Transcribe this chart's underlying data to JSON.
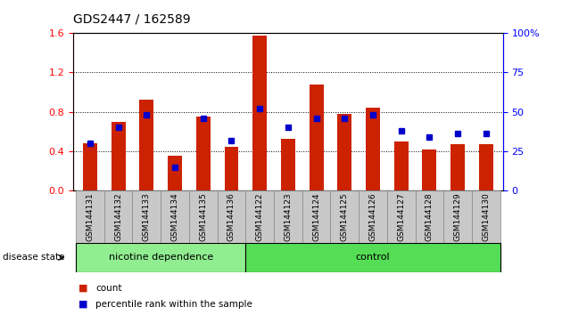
{
  "title": "GDS2447 / 162589",
  "samples": [
    "GSM144131",
    "GSM144132",
    "GSM144133",
    "GSM144134",
    "GSM144135",
    "GSM144136",
    "GSM144122",
    "GSM144123",
    "GSM144124",
    "GSM144125",
    "GSM144126",
    "GSM144127",
    "GSM144128",
    "GSM144129",
    "GSM144130"
  ],
  "count_values": [
    0.48,
    0.7,
    0.92,
    0.35,
    0.75,
    0.44,
    1.57,
    0.53,
    1.08,
    0.78,
    0.84,
    0.5,
    0.42,
    0.47,
    0.47
  ],
  "percentile_values": [
    30,
    40,
    48,
    15,
    46,
    32,
    52,
    40,
    46,
    46,
    48,
    38,
    34,
    36,
    36
  ],
  "groups": [
    {
      "label": "nicotine dependence",
      "start": 0,
      "end": 6,
      "color": "#90ee90"
    },
    {
      "label": "control",
      "start": 6,
      "end": 15,
      "color": "#55dd55"
    }
  ],
  "group_label": "disease state",
  "bar_color": "#cc2200",
  "dot_color": "#0000cc",
  "ylim_left": [
    0,
    1.6
  ],
  "ylim_right": [
    0,
    100
  ],
  "yticks_left": [
    0,
    0.4,
    0.8,
    1.2,
    1.6
  ],
  "yticks_right": [
    0,
    25,
    50,
    75,
    100
  ],
  "ytick_labels_right": [
    "0",
    "25",
    "50",
    "75",
    "100%"
  ],
  "plot_bg_color": "#ffffff",
  "xtick_bg_color": "#c8c8c8",
  "bar_width": 0.5,
  "legend_count_label": "count",
  "legend_pct_label": "percentile rank within the sample"
}
